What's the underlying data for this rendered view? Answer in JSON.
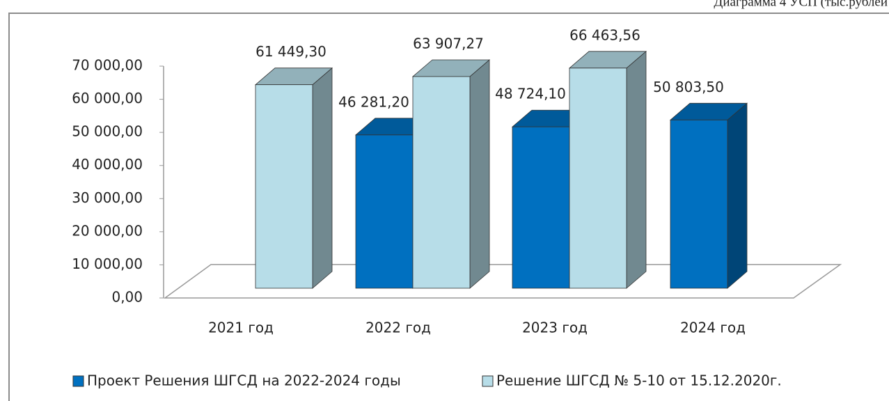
{
  "chart_data": {
    "type": "bar3d",
    "title": "Диаграмма 4 УСП (тыс.рублей",
    "categories": [
      "2021 год",
      "2022 год",
      "2023 год",
      "2024 год"
    ],
    "series": [
      {
        "name": "Проект Решения ШГСД на 2022-2024 годы",
        "color": "#0070c0",
        "values": [
          null,
          46281.2,
          48724.1,
          50803.5
        ],
        "value_labels": [
          null,
          "46 281,20",
          "48 724,10",
          "50 803,50"
        ]
      },
      {
        "name": "Решение  ШГСД № 5-10 от 15.12.2020г.",
        "color": "#b7dde8",
        "values": [
          61449.3,
          63907.27,
          66463.56,
          null
        ],
        "value_labels": [
          "61 449,30",
          "63 907,27",
          "66 463,56",
          null
        ]
      }
    ],
    "ylim": [
      0,
      70000
    ],
    "yticks": [
      {
        "value": 0,
        "label": "0,00"
      },
      {
        "value": 10000,
        "label": "10 000,00"
      },
      {
        "value": 20000,
        "label": "20 000,00"
      },
      {
        "value": 30000,
        "label": "30 000,00"
      },
      {
        "value": 40000,
        "label": "40 000,00"
      },
      {
        "value": 50000,
        "label": "50 000,00"
      },
      {
        "value": 60000,
        "label": "60 000,00"
      },
      {
        "value": 70000,
        "label": "70 000,00"
      }
    ],
    "legend": "bottom"
  }
}
